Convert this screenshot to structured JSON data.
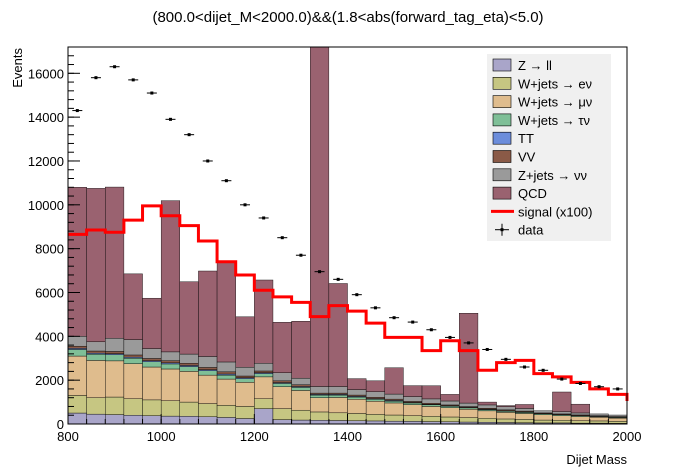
{
  "chart_data": {
    "type": "bar",
    "title": "(800.0<dijet_M<2000.0)&&(1.8<abs(forward_tag_eta)<5.0)",
    "xlabel": "Dijet Mass",
    "ylabel": "Events",
    "xlim": [
      800,
      2000
    ],
    "ylim": [
      0,
      17200
    ],
    "x_ticks": [
      "800",
      "1000",
      "1200",
      "1400",
      "1600",
      "1800",
      "2000"
    ],
    "y_ticks": [
      "0",
      "2000",
      "4000",
      "6000",
      "8000",
      "10000",
      "12000",
      "14000",
      "16000"
    ],
    "bin_edges": [
      800,
      840,
      880,
      920,
      960,
      1000,
      1040,
      1080,
      1120,
      1160,
      1200,
      1240,
      1280,
      1320,
      1360,
      1400,
      1440,
      1480,
      1520,
      1560,
      1600,
      1640,
      1680,
      1720,
      1760,
      1800,
      1840,
      1880,
      1920,
      1960,
      2000
    ],
    "legend_position": "top-right",
    "series": [
      {
        "name": "Z → ll",
        "color": "#a9a5c9",
        "values": [
          500,
          450,
          430,
          400,
          380,
          360,
          350,
          330,
          300,
          250,
          700,
          200,
          180,
          170,
          160,
          150,
          140,
          130,
          120,
          110,
          100,
          90,
          80,
          70,
          60,
          50,
          50,
          40,
          40,
          30
        ]
      },
      {
        "name": "W+jets → eν",
        "color": "#c6c682",
        "values": [
          800,
          750,
          800,
          750,
          720,
          700,
          650,
          600,
          550,
          550,
          450,
          500,
          450,
          380,
          350,
          330,
          300,
          280,
          260,
          240,
          220,
          200,
          180,
          160,
          150,
          130,
          120,
          110,
          100,
          90
        ]
      },
      {
        "name": "W+jets → μν",
        "color": "#dfbc8d",
        "values": [
          1800,
          1700,
          1650,
          1600,
          1500,
          1450,
          1400,
          1300,
          1200,
          1100,
          1000,
          1000,
          900,
          650,
          700,
          650,
          600,
          550,
          500,
          450,
          420,
          380,
          340,
          300,
          270,
          240,
          210,
          190,
          170,
          150
        ]
      },
      {
        "name": "W+jets → τν",
        "color": "#7fbf97",
        "values": [
          300,
          280,
          280,
          250,
          240,
          230,
          220,
          200,
          180,
          170,
          150,
          150,
          140,
          120,
          110,
          100,
          90,
          85,
          80,
          75,
          70,
          65,
          60,
          55,
          50,
          45,
          40,
          35,
          30,
          30
        ]
      },
      {
        "name": "TT",
        "color": "#6c8ddb",
        "values": [
          50,
          50,
          50,
          50,
          50,
          50,
          50,
          50,
          50,
          40,
          40,
          40,
          40,
          30,
          30,
          30,
          30,
          30,
          20,
          20,
          20,
          20,
          20,
          20,
          20,
          10,
          10,
          10,
          10,
          10
        ]
      },
      {
        "name": "VV",
        "color": "#8a5a47",
        "values": [
          100,
          100,
          100,
          100,
          100,
          100,
          100,
          100,
          100,
          80,
          80,
          80,
          80,
          60,
          60,
          60,
          60,
          60,
          50,
          50,
          40,
          40,
          40,
          40,
          40,
          30,
          30,
          30,
          30,
          30
        ]
      },
      {
        "name": "Z+jets → νν",
        "color": "#9a9a9a",
        "values": [
          450,
          420,
          600,
          700,
          450,
          400,
          420,
          500,
          450,
          400,
          350,
          370,
          300,
          300,
          300,
          250,
          250,
          230,
          220,
          200,
          180,
          160,
          150,
          140,
          120,
          100,
          100,
          90,
          80,
          70
        ]
      },
      {
        "name": "QCD",
        "color": "#9a6270",
        "values": [
          6800,
          7000,
          6900,
          3000,
          2300,
          6900,
          3300,
          3900,
          4600,
          2300,
          3800,
          2300,
          2600,
          15500,
          4700,
          500,
          500,
          1200,
          500,
          600,
          300,
          4100,
          130,
          55,
          180,
          0,
          900,
          400,
          0,
          0
        ]
      }
    ],
    "signal": {
      "name": "signal (x100)",
      "color": "#ff0000",
      "values": [
        8650,
        8850,
        8750,
        9300,
        9950,
        9500,
        9050,
        8350,
        7400,
        6800,
        6100,
        5800,
        5550,
        4900,
        5400,
        5150,
        4600,
        3950,
        3950,
        3350,
        3800,
        3350,
        2450,
        2800,
        2900,
        2300,
        2150,
        1900,
        1600,
        1350,
        1050
      ]
    },
    "data": {
      "name": "data",
      "values": [
        14300,
        15800,
        16300,
        15700,
        15100,
        13900,
        13200,
        12000,
        11100,
        10000,
        9400,
        8500,
        7700,
        6950,
        6600,
        5900,
        5300,
        4850,
        4650,
        4300,
        3950,
        3700,
        3400,
        2950,
        2600,
        2450,
        2050,
        1850,
        1700,
        1600
      ]
    },
    "legend": [
      {
        "label": "Z → ll",
        "kind": "box",
        "color": "#a9a5c9"
      },
      {
        "label": "W+jets → eν",
        "kind": "box",
        "color": "#c6c682"
      },
      {
        "label": "W+jets → μν",
        "kind": "box",
        "color": "#dfbc8d"
      },
      {
        "label": "W+jets → τν",
        "kind": "box",
        "color": "#7fbf97"
      },
      {
        "label": "TT",
        "kind": "box",
        "color": "#6c8ddb"
      },
      {
        "label": "VV",
        "kind": "box",
        "color": "#8a5a47"
      },
      {
        "label": "Z+jets → νν",
        "kind": "box",
        "color": "#9a9a9a"
      },
      {
        "label": "QCD",
        "kind": "box",
        "color": "#9a6270"
      },
      {
        "label": "signal (x100)",
        "kind": "line",
        "color": "#ff0000"
      },
      {
        "label": "data",
        "kind": "marker",
        "color": "#000000"
      }
    ]
  }
}
